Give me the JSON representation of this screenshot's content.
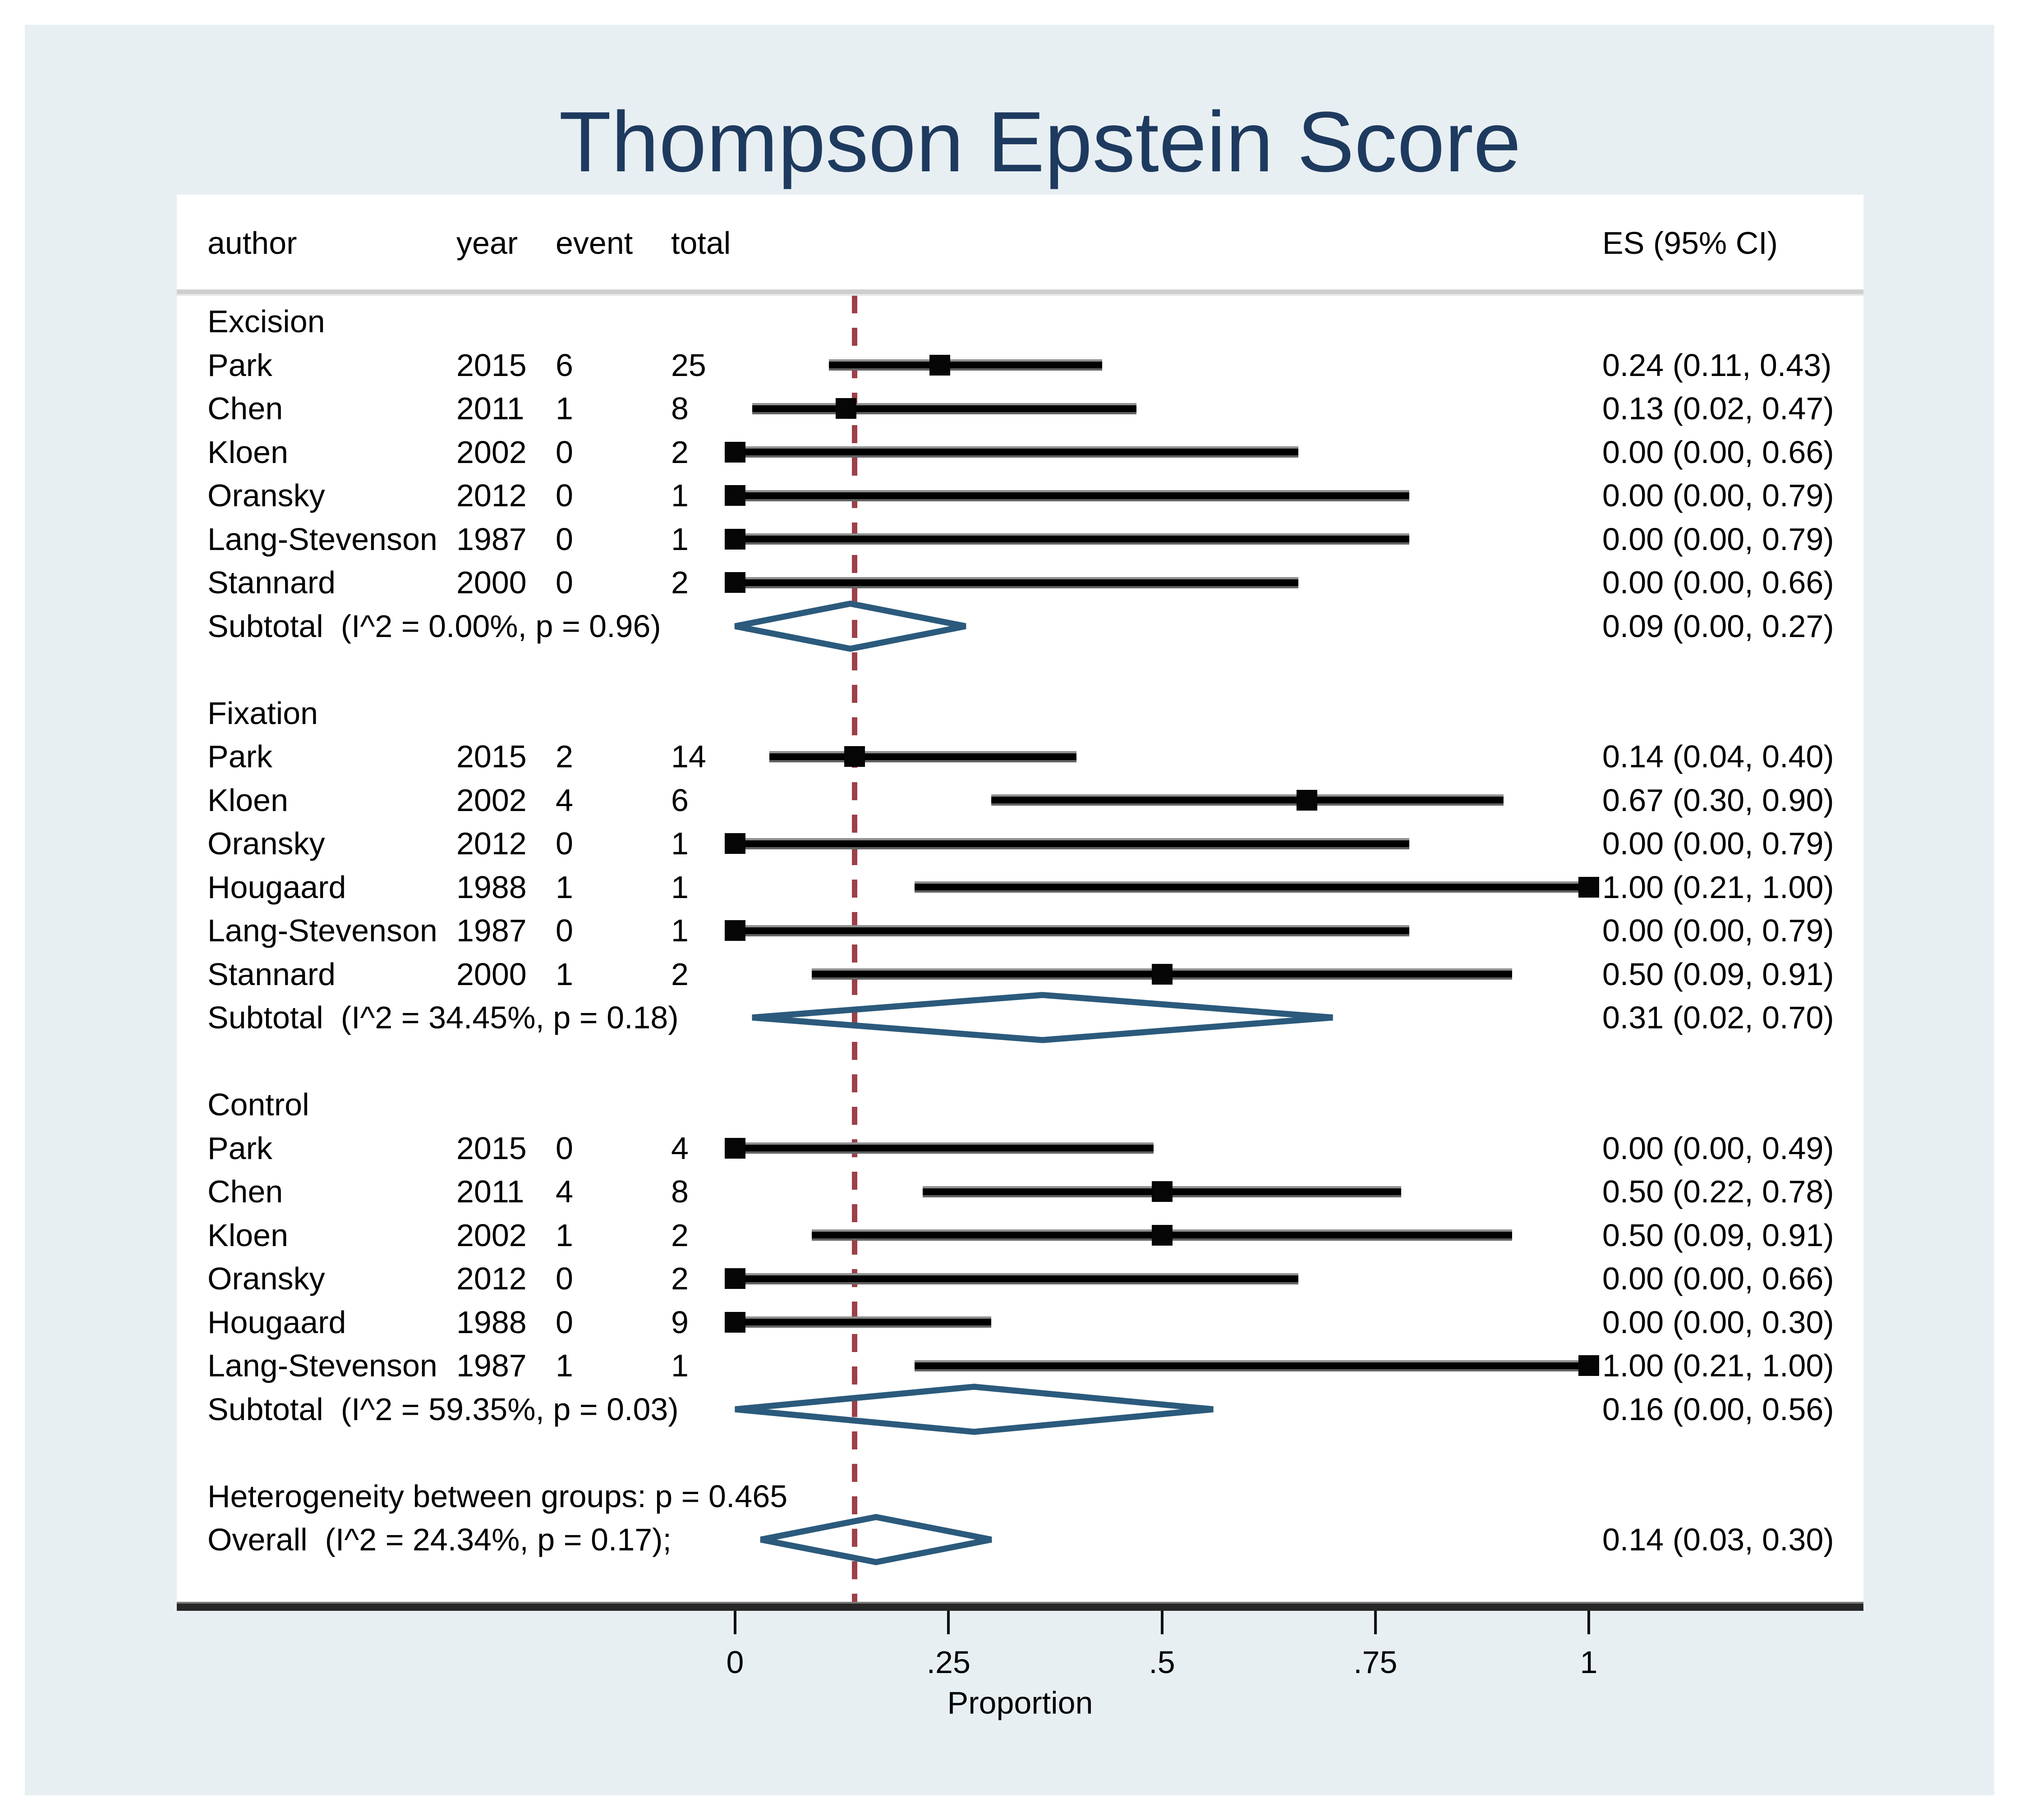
{
  "colors": {
    "background": "#ffffff",
    "panel": "#e8eff2",
    "title": "#1e3a5f",
    "text": "#000000",
    "diamond": "#2b5a7c",
    "reference": "#9d4049",
    "ci_line": "#000000",
    "marker": "#060606"
  },
  "chart_data": {
    "type": "forest",
    "title": "Thompson Epstein Score",
    "columns": {
      "author": "author",
      "year": "year",
      "event": "event",
      "total": "total",
      "es": "ES (95% CI)"
    },
    "axis": {
      "label": "Proportion",
      "xlim": [
        0,
        1
      ],
      "ticks": [
        {
          "value": 0,
          "label": "0"
        },
        {
          "value": 0.25,
          "label": ".25"
        },
        {
          "value": 0.5,
          "label": ".5"
        },
        {
          "value": 0.75,
          "label": ".75"
        },
        {
          "value": 1,
          "label": "1"
        }
      ]
    },
    "reference_line": {
      "value": 0.14,
      "style": "dashed"
    },
    "groups": [
      {
        "name": "Excision",
        "studies": [
          {
            "author": "Park",
            "year": "2015",
            "event": "6",
            "total": "25",
            "es": 0.24,
            "lo": 0.11,
            "hi": 0.43,
            "es_text": "0.24 (0.11, 0.43)"
          },
          {
            "author": "Chen",
            "year": "2011",
            "event": "1",
            "total": "8",
            "es": 0.13,
            "lo": 0.02,
            "hi": 0.47,
            "es_text": "0.13 (0.02, 0.47)"
          },
          {
            "author": "Kloen",
            "year": "2002",
            "event": "0",
            "total": "2",
            "es": 0.0,
            "lo": 0.0,
            "hi": 0.66,
            "es_text": "0.00 (0.00, 0.66)"
          },
          {
            "author": "Oransky",
            "year": "2012",
            "event": "0",
            "total": "1",
            "es": 0.0,
            "lo": 0.0,
            "hi": 0.79,
            "es_text": "0.00 (0.00, 0.79)"
          },
          {
            "author": "Lang-Stevenson",
            "year": "1987",
            "event": "0",
            "total": "1",
            "es": 0.0,
            "lo": 0.0,
            "hi": 0.79,
            "es_text": "0.00 (0.00, 0.79)"
          },
          {
            "author": "Stannard",
            "year": "2000",
            "event": "0",
            "total": "2",
            "es": 0.0,
            "lo": 0.0,
            "hi": 0.66,
            "es_text": "0.00 (0.00, 0.66)"
          }
        ],
        "subtotal": {
          "label": "Subtotal  (I^2 = 0.00%, p = 0.96)",
          "es": 0.09,
          "lo": 0.0,
          "hi": 0.27,
          "es_text": "0.09 (0.00, 0.27)"
        }
      },
      {
        "name": "Fixation",
        "studies": [
          {
            "author": "Park",
            "year": "2015",
            "event": "2",
            "total": "14",
            "es": 0.14,
            "lo": 0.04,
            "hi": 0.4,
            "es_text": "0.14 (0.04, 0.40)"
          },
          {
            "author": "Kloen",
            "year": "2002",
            "event": "4",
            "total": "6",
            "es": 0.67,
            "lo": 0.3,
            "hi": 0.9,
            "es_text": "0.67 (0.30, 0.90)"
          },
          {
            "author": "Oransky",
            "year": "2012",
            "event": "0",
            "total": "1",
            "es": 0.0,
            "lo": 0.0,
            "hi": 0.79,
            "es_text": "0.00 (0.00, 0.79)"
          },
          {
            "author": "Hougaard",
            "year": "1988",
            "event": "1",
            "total": "1",
            "es": 1.0,
            "lo": 0.21,
            "hi": 1.0,
            "es_text": "1.00 (0.21, 1.00)"
          },
          {
            "author": "Lang-Stevenson",
            "year": "1987",
            "event": "0",
            "total": "1",
            "es": 0.0,
            "lo": 0.0,
            "hi": 0.79,
            "es_text": "0.00 (0.00, 0.79)"
          },
          {
            "author": "Stannard",
            "year": "2000",
            "event": "1",
            "total": "2",
            "es": 0.5,
            "lo": 0.09,
            "hi": 0.91,
            "es_text": "0.50 (0.09, 0.91)"
          }
        ],
        "subtotal": {
          "label": "Subtotal  (I^2 = 34.45%, p = 0.18)",
          "es": 0.31,
          "lo": 0.02,
          "hi": 0.7,
          "es_text": "0.31 (0.02, 0.70)"
        }
      },
      {
        "name": "Control",
        "studies": [
          {
            "author": "Park",
            "year": "2015",
            "event": "0",
            "total": "4",
            "es": 0.0,
            "lo": 0.0,
            "hi": 0.49,
            "es_text": "0.00 (0.00, 0.49)"
          },
          {
            "author": "Chen",
            "year": "2011",
            "event": "4",
            "total": "8",
            "es": 0.5,
            "lo": 0.22,
            "hi": 0.78,
            "es_text": "0.50 (0.22, 0.78)"
          },
          {
            "author": "Kloen",
            "year": "2002",
            "event": "1",
            "total": "2",
            "es": 0.5,
            "lo": 0.09,
            "hi": 0.91,
            "es_text": "0.50 (0.09, 0.91)"
          },
          {
            "author": "Oransky",
            "year": "2012",
            "event": "0",
            "total": "2",
            "es": 0.0,
            "lo": 0.0,
            "hi": 0.66,
            "es_text": "0.00 (0.00, 0.66)"
          },
          {
            "author": "Hougaard",
            "year": "1988",
            "event": "0",
            "total": "9",
            "es": 0.0,
            "lo": 0.0,
            "hi": 0.3,
            "es_text": "0.00 (0.00, 0.30)"
          },
          {
            "author": "Lang-Stevenson",
            "year": "1987",
            "event": "1",
            "total": "1",
            "es": 1.0,
            "lo": 0.21,
            "hi": 1.0,
            "es_text": "1.00 (0.21, 1.00)"
          }
        ],
        "subtotal": {
          "label": "Subtotal  (I^2 = 59.35%, p = 0.03)",
          "es": 0.16,
          "lo": 0.0,
          "hi": 0.56,
          "es_text": "0.16 (0.00, 0.56)"
        }
      }
    ],
    "heterogeneity_note": "Heterogeneity between groups: p = 0.465",
    "overall": {
      "label": "Overall  (I^2 = 24.34%, p = 0.17);",
      "es": 0.14,
      "lo": 0.03,
      "hi": 0.3,
      "es_text": "0.14 (0.03, 0.30)"
    }
  }
}
